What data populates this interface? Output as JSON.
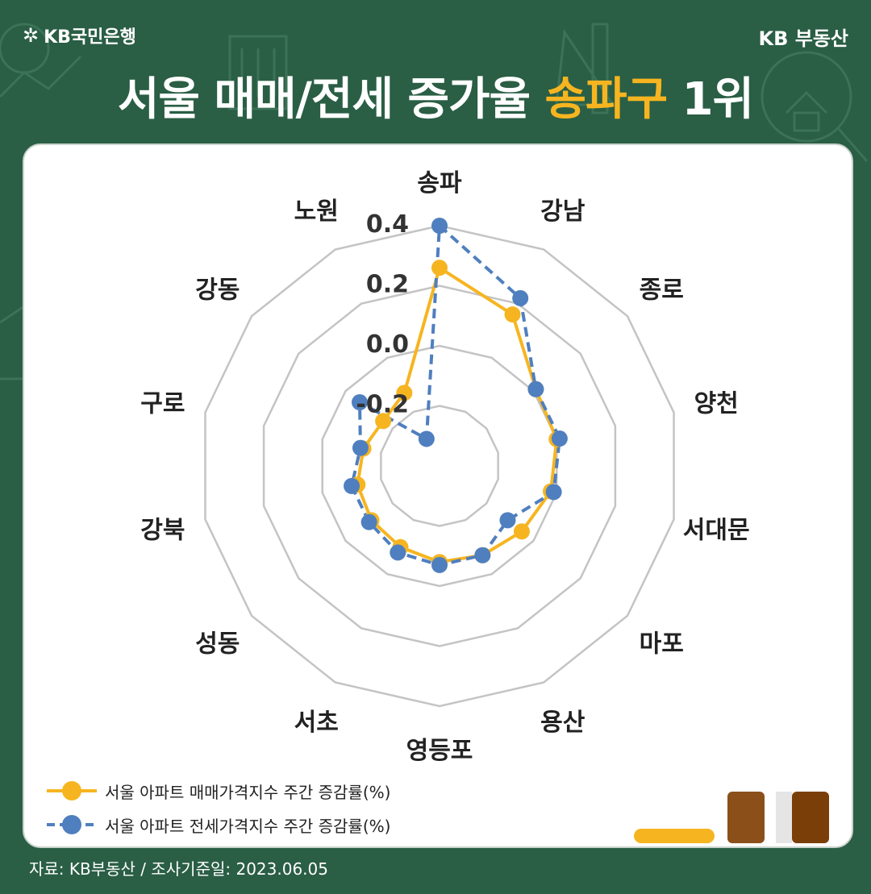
{
  "header": {
    "brand_left": "KB국민은행",
    "brand_right": "KB 부동산",
    "title_main": "서울 매매/전세 증가율 ",
    "title_accent": "송파구",
    "title_tail": " 1위"
  },
  "colors": {
    "background": "#2a5e45",
    "accent": "#f6b520",
    "sale_series": "#f6b520",
    "jeonse_series": "#4f7fbf"
  },
  "chart_data": {
    "type": "radar",
    "categories": [
      "송파",
      "강남",
      "종로",
      "양천",
      "서대문",
      "마포",
      "용산",
      "영등포",
      "서초",
      "성동",
      "강북",
      "구로",
      "강동",
      "노원"
    ],
    "rlim": [
      -0.4,
      0.4
    ],
    "ticks": [
      {
        "value": 0.4,
        "label": "0.4"
      },
      {
        "value": 0.2,
        "label": "0.2"
      },
      {
        "value": 0.0,
        "label": "0.0"
      },
      {
        "value": -0.2,
        "label": "-0.2"
      }
    ],
    "grid": true,
    "legend": "bottom-left",
    "series": [
      {
        "name": "서울 아파트 매매가격지수 주간 증감률(%)",
        "style": "solid",
        "values": [
          0.26,
          0.16,
          0.01,
          0.0,
          -0.02,
          -0.05,
          -0.07,
          -0.08,
          -0.1,
          -0.11,
          -0.12,
          -0.14,
          -0.16,
          -0.13
        ]
      },
      {
        "name": "서울 아파트 전세가격지수 주간 증감률(%)",
        "style": "dashed",
        "values": [
          0.4,
          0.22,
          0.01,
          0.01,
          -0.01,
          -0.11,
          -0.07,
          -0.07,
          -0.08,
          -0.1,
          -0.1,
          -0.13,
          -0.06,
          -0.3
        ]
      }
    ]
  },
  "source": "자료: KB부동산 / 조사기준일: 2023.06.05"
}
